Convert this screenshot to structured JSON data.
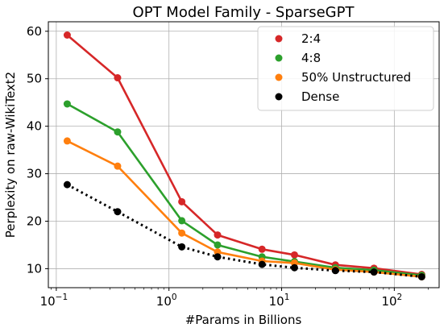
{
  "chart_data": {
    "type": "line",
    "title": "OPT Model Family - SparseGPT",
    "xlabel": "#Params in Billions",
    "ylabel": "Perplexity on raw-WikiText2",
    "x_scale": "log",
    "xlim": [
      0.085,
      250
    ],
    "ylim": [
      6,
      62
    ],
    "grid": true,
    "legend_position": "top-right",
    "x_ticks": [
      {
        "value": 0.1,
        "base": "10",
        "exp": "−1"
      },
      {
        "value": 1,
        "base": "10",
        "exp": "0"
      },
      {
        "value": 10,
        "base": "10",
        "exp": "1"
      },
      {
        "value": 100,
        "base": "10",
        "exp": "2"
      }
    ],
    "y_ticks": [
      10,
      20,
      30,
      40,
      50,
      60
    ],
    "x": [
      0.125,
      0.35,
      1.3,
      2.7,
      6.7,
      13,
      30,
      66,
      175
    ],
    "series": [
      {
        "name": "2:4",
        "color": "#d62728",
        "style": "solid",
        "values": [
          59.2,
          50.2,
          24.1,
          17.1,
          14.1,
          12.9,
          10.8,
          10.1,
          8.8
        ]
      },
      {
        "name": "4:8",
        "color": "#2ca02c",
        "style": "solid",
        "values": [
          44.7,
          38.8,
          20.1,
          15.0,
          12.5,
          11.5,
          10.2,
          9.7,
          8.6
        ]
      },
      {
        "name": "50% Unstructured",
        "color": "#ff7f0e",
        "style": "solid",
        "values": [
          36.9,
          31.6,
          17.5,
          13.5,
          11.6,
          11.2,
          9.8,
          9.3,
          8.3
        ]
      },
      {
        "name": "Dense",
        "color": "#000000",
        "style": "dotted",
        "values": [
          27.7,
          22.0,
          14.6,
          12.5,
          10.9,
          10.2,
          9.6,
          9.3,
          8.3
        ]
      }
    ]
  }
}
